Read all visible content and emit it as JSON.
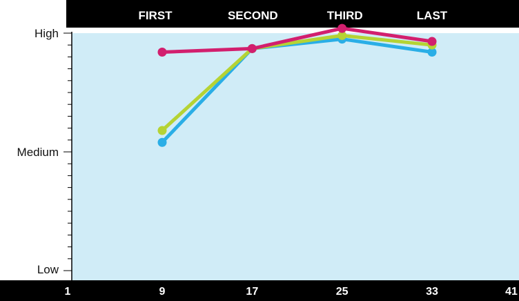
{
  "chart_data": {
    "type": "line",
    "categories": [
      "FIRST",
      "SECOND",
      "THIRD",
      "LAST"
    ],
    "x_ticks": [
      "1",
      "9",
      "17",
      "25",
      "33",
      "41"
    ],
    "xlim": [
      1,
      41
    ],
    "y_tick_labels": [
      "High",
      "Medium",
      "Low"
    ],
    "y_tick_values": [
      1.0,
      0.5,
      0.0
    ],
    "ylim": [
      0,
      1
    ],
    "grid": false,
    "legend": "none",
    "series": [
      {
        "color": "#d21f6e",
        "x": [
          9,
          17,
          25,
          33
        ],
        "values": [
          0.92,
          0.935,
          1.02,
          0.965
        ]
      },
      {
        "color": "#b5d334",
        "x": [
          9,
          17,
          25,
          33
        ],
        "values": [
          0.59,
          0.935,
          0.99,
          0.95
        ]
      },
      {
        "color": "#2aaee6",
        "x": [
          9,
          17,
          25,
          33
        ],
        "values": [
          0.54,
          0.935,
          0.975,
          0.92
        ]
      }
    ],
    "colors": {
      "plot_bg": "#d0ecf7",
      "bar": "#000000"
    }
  }
}
